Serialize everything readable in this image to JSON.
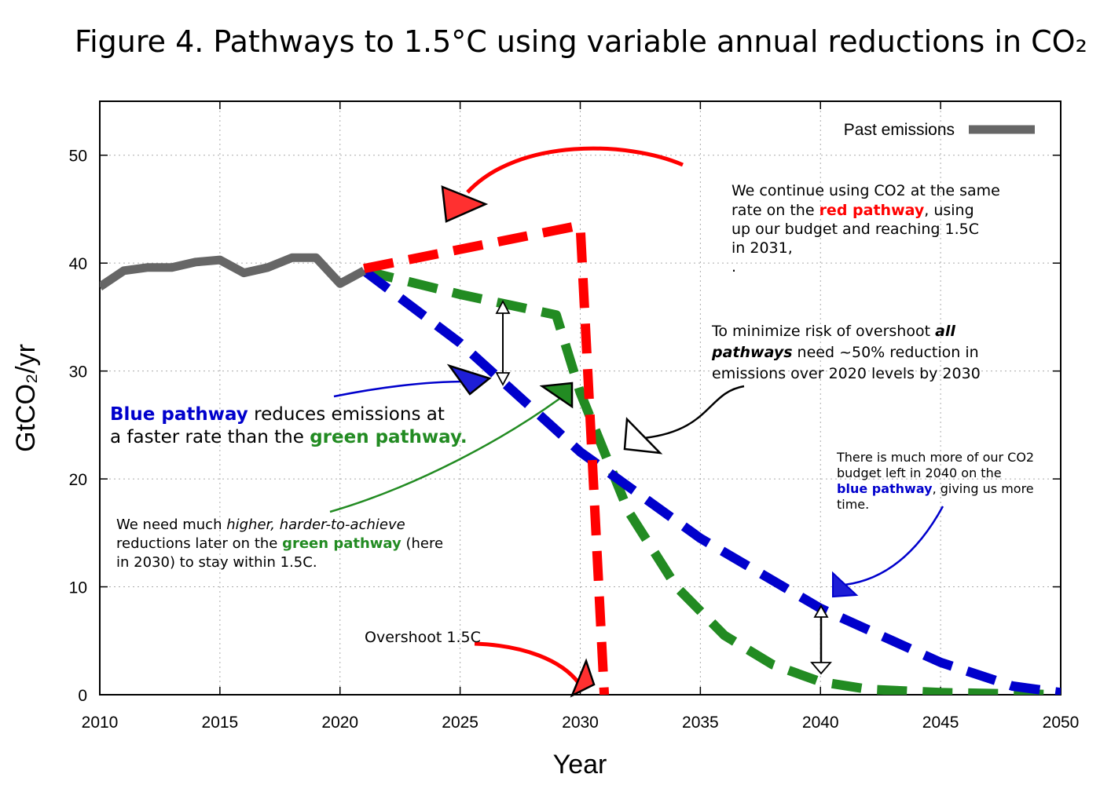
{
  "title": "Figure 4. Pathways to 1.5°C using variable annual reductions in CO₂",
  "chart_data": {
    "type": "line",
    "xlabel": "Year",
    "ylabel": "GtCO₂/yr",
    "xlim": [
      2010,
      2050
    ],
    "ylim": [
      0,
      55
    ],
    "xticks": [
      2010,
      2015,
      2020,
      2025,
      2030,
      2035,
      2040,
      2045,
      2050
    ],
    "yticks": [
      0,
      10,
      20,
      30,
      40,
      50
    ],
    "grid": true,
    "legend_position": "top-right",
    "legend": [
      "Past emissions"
    ],
    "series": [
      {
        "name": "Past emissions",
        "color": "#666666",
        "style": "solid",
        "x": [
          2010,
          2011,
          2012,
          2013,
          2014,
          2015,
          2016,
          2017,
          2018,
          2019,
          2020,
          2021
        ],
        "y": [
          37.8,
          39.3,
          39.6,
          39.6,
          40.1,
          40.3,
          39.1,
          39.6,
          40.5,
          40.5,
          38.1,
          39.3
        ]
      },
      {
        "color": "#ff0000",
        "style": "dashed",
        "x": [
          2021,
          2030,
          2031
        ],
        "y": [
          39.5,
          43.5,
          0
        ]
      },
      {
        "color": "#228b22",
        "style": "dashed",
        "x": [
          2021,
          2025,
          2029,
          2030,
          2032,
          2034,
          2036,
          2038,
          2040,
          2042,
          2045,
          2050
        ],
        "y": [
          39.3,
          37.1,
          35.2,
          28,
          17,
          10,
          5.5,
          2.8,
          1.2,
          0.5,
          0.2,
          0
        ]
      },
      {
        "color": "#0000cc",
        "style": "dashed",
        "x": [
          2021,
          2025,
          2030,
          2035,
          2040,
          2045,
          2048,
          2050
        ],
        "y": [
          39.3,
          32.6,
          22.5,
          14.5,
          8,
          3,
          0.8,
          0.2
        ]
      }
    ]
  },
  "annotations": {
    "red_note": {
      "line1": "We continue using CO2 at the same",
      "line2_pre": "rate  on the ",
      "line2_hl": "red pathway",
      "line2_post": ", using",
      "line3": "up our budget and reaching 1.5C",
      "line4": "in 2031,",
      "line5": "."
    },
    "overshoot_note": {
      "line1_pre": "To minimize risk of overshoot ",
      "line1_bi": "all",
      "line2_bi": "pathways",
      "line2_post": " need ~50% reduction in",
      "line3": "emissions over 2020 levels by 2030"
    },
    "blue_vs_green": {
      "l1_hl": "Blue pathway",
      "l1_post": " reduces emissions at",
      "l2_pre": "a faster rate than the ",
      "l2_hl": "green pathway."
    },
    "green_note": {
      "l1_pre": "We need much ",
      "l1_it": "higher, harder-to-achieve",
      "l2_pre": "reductions later on the ",
      "l2_hl": "green pathway",
      "l2_post": " (here",
      "l3": "in 2030) to stay within  1.5C."
    },
    "blue_note": {
      "l1": "There is much more of our CO2",
      "l2": "budget left in 2040 on the",
      "l3_hl": "blue pathway",
      "l3_post": ", giving us more",
      "l4": "time."
    },
    "overshoot_label": "Overshoot 1.5C"
  }
}
